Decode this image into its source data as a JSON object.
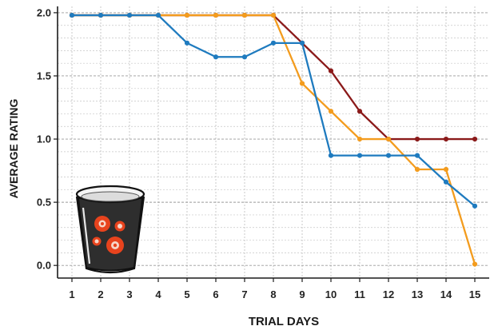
{
  "chart_data": {
    "type": "line",
    "xlabel": "TRIAL DAYS",
    "ylabel": "AVERAGE RATING",
    "x_ticks": [
      "1",
      "2",
      "3",
      "4",
      "5",
      "6",
      "7",
      "8",
      "9",
      "10",
      "11",
      "12",
      "13",
      "14",
      "15"
    ],
    "y_ticks": [
      "0.0",
      "0.5",
      "1.0",
      "1.5",
      "2.0"
    ],
    "xlim": [
      0.5,
      15.5
    ],
    "ylim": [
      -0.1,
      2.05
    ],
    "grid": true,
    "series": [
      {
        "color": "#8b1a1a",
        "points": [
          [
            1,
            1.98
          ],
          [
            2,
            1.98
          ],
          [
            3,
            1.98
          ],
          [
            4,
            1.98
          ],
          [
            5,
            1.98
          ],
          [
            6,
            1.98
          ],
          [
            7,
            1.98
          ],
          [
            8,
            1.98
          ],
          [
            9,
            1.76
          ],
          [
            10,
            1.54
          ],
          [
            11,
            1.22
          ],
          [
            12,
            1.0
          ],
          [
            13,
            1.0
          ],
          [
            14,
            1.0
          ],
          [
            15,
            1.0
          ]
        ]
      },
      {
        "color": "#f39c1e",
        "points": [
          [
            1,
            1.98
          ],
          [
            2,
            1.98
          ],
          [
            3,
            1.98
          ],
          [
            4,
            1.98
          ],
          [
            5,
            1.98
          ],
          [
            6,
            1.98
          ],
          [
            7,
            1.98
          ],
          [
            8,
            1.98
          ],
          [
            9,
            1.44
          ],
          [
            10,
            1.22
          ],
          [
            11,
            1.0
          ],
          [
            12,
            1.0
          ],
          [
            13,
            0.76
          ],
          [
            14,
            0.76
          ],
          [
            15,
            0.01
          ]
        ]
      },
      {
        "color": "#1f7bbf",
        "points": [
          [
            1,
            1.98
          ],
          [
            2,
            1.98
          ],
          [
            3,
            1.98
          ],
          [
            4,
            1.98
          ],
          [
            5,
            1.76
          ],
          [
            6,
            1.65
          ],
          [
            7,
            1.65
          ],
          [
            8,
            1.76
          ],
          [
            9,
            1.76
          ],
          [
            10,
            0.87
          ],
          [
            11,
            0.87
          ],
          [
            12,
            0.87
          ],
          [
            13,
            0.87
          ],
          [
            14,
            0.66
          ],
          [
            15,
            0.47
          ]
        ]
      }
    ]
  },
  "illustration": {
    "name": "cup-with-flowers",
    "cup_color": "#2e2e2e",
    "flower_color": "#e8431d"
  }
}
